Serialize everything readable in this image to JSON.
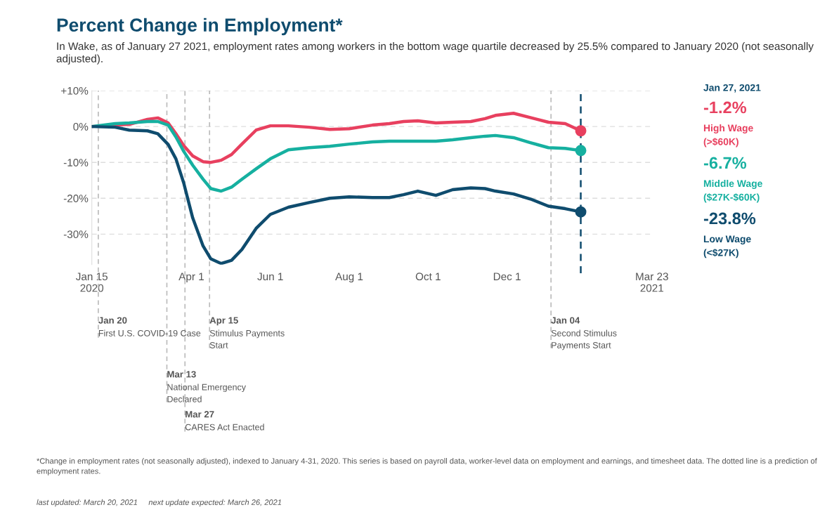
{
  "chart_data": {
    "type": "line",
    "title": "Percent Change in Employment*",
    "subtitle": "In Wake, as of January 27 2021, employment rates among workers in the bottom wage quartile decreased by 25.5% compared to January 2020 (not seasonally adjusted).",
    "x": [
      "2020-01-15",
      "2020-02-02",
      "2020-02-13",
      "2020-02-27",
      "2020-03-06",
      "2020-03-14",
      "2020-03-20",
      "2020-03-26",
      "2020-04-02",
      "2020-04-10",
      "2020-04-16",
      "2020-04-24",
      "2020-05-02",
      "2020-05-10",
      "2020-05-21",
      "2020-06-01",
      "2020-06-15",
      "2020-07-01",
      "2020-07-17",
      "2020-08-01",
      "2020-08-19",
      "2020-09-01",
      "2020-09-12",
      "2020-09-23",
      "2020-10-07",
      "2020-10-20",
      "2020-11-03",
      "2020-11-14",
      "2020-11-22",
      "2020-12-06",
      "2020-12-19",
      "2021-01-02",
      "2021-01-15",
      "2021-01-27"
    ],
    "series": [
      {
        "color": "#e8405f",
        "values": [
          0,
          0.4,
          0.6,
          2,
          2.4,
          1,
          -2,
          -5.3,
          -8.2,
          -9.8,
          -10,
          -9.4,
          -7.8,
          -4.9,
          -1,
          0.2,
          0.2,
          -0.2,
          -0.8,
          -0.6,
          0.4,
          0.8,
          1.4,
          1.6,
          1,
          1.2,
          1.4,
          2.2,
          3.1,
          3.7,
          2.5,
          1.2,
          0.8,
          -1.2
        ]
      },
      {
        "color": "#16b0a0",
        "values": [
          0,
          0.8,
          1,
          1.4,
          1.4,
          0.4,
          -2.9,
          -6.9,
          -10.8,
          -14.7,
          -17.3,
          -18,
          -16.9,
          -14.7,
          -11.8,
          -9,
          -6.5,
          -5.9,
          -5.5,
          -4.9,
          -4.3,
          -4.1,
          -4.1,
          -4.1,
          -4.1,
          -3.7,
          -3.1,
          -2.7,
          -2.5,
          -3.1,
          -4.5,
          -5.9,
          -6.1,
          -6.7
        ]
      },
      {
        "color": "#0f4c6e",
        "values": [
          0,
          -0.2,
          -1,
          -1.2,
          -2,
          -5,
          -9,
          -15.7,
          -25.5,
          -33.3,
          -36.9,
          -38.2,
          -37.3,
          -34.3,
          -28.4,
          -24.5,
          -22.5,
          -21.2,
          -20,
          -19.6,
          -19.8,
          -19.8,
          -19,
          -18,
          -19.2,
          -17.6,
          -17.1,
          -17.3,
          -18,
          -18.8,
          -20.2,
          -22.2,
          -22.9,
          -23.8
        ]
      },
      {
        "type": "scatter",
        "name": "High Wage\n(>$60K)",
        "color": "#e8405f",
        "x": [
          "2021-01-27"
        ],
        "values": [
          -1.2
        ]
      },
      {
        "type": "scatter",
        "name": "Middle Wage\n($27K-$60K)",
        "color": "#16b0a0",
        "x": [
          "2021-01-27"
        ],
        "values": [
          -6.7
        ]
      },
      {
        "type": "scatter",
        "name": "Low Wage\n(<$27K)",
        "color": "#0f4c6e",
        "x": [
          "2021-01-27"
        ],
        "values": [
          -23.8
        ]
      }
    ],
    "xlim": [
      "2020-01-15",
      "2021-03-23"
    ],
    "xticks": [
      {
        "value": "2020-01-15",
        "label": "Jan 15\n2020"
      },
      {
        "value": "2020-04-01",
        "label": "Apr 1"
      },
      {
        "value": "2020-06-01",
        "label": "Jun 1"
      },
      {
        "value": "2020-08-01",
        "label": "Aug 1"
      },
      {
        "value": "2020-10-01",
        "label": "Oct 1"
      },
      {
        "value": "2020-12-01",
        "label": "Dec 1"
      },
      {
        "value": "2021-03-23",
        "label": "Mar 23\n2021"
      }
    ],
    "ylim": [
      -38.5,
      10
    ],
    "yticks": [
      {
        "value": 10,
        "label": "+10%"
      },
      {
        "value": 0,
        "label": "0%"
      },
      {
        "value": -10,
        "label": "-10%"
      },
      {
        "value": -20,
        "label": "-20%"
      },
      {
        "value": -30,
        "label": "-30%"
      }
    ],
    "grid": "y",
    "line_style": "solid",
    "ref_lines": [
      {
        "axis": "x",
        "value": "2020-01-20",
        "label": "Jan 20\nFirst U.S. COVID-19 Case",
        "color": "#bbbbbb",
        "line_style": "dashed"
      },
      {
        "axis": "x",
        "value": "2020-03-13",
        "label": "Mar 13\nNational Emergency\nDeclared",
        "color": "#bbbbbb",
        "line_style": "dashed"
      },
      {
        "axis": "x",
        "value": "2020-03-27",
        "label": "Mar 27\nCARES Act Enacted",
        "color": "#bbbbbb",
        "line_style": "dashed"
      },
      {
        "axis": "x",
        "value": "2020-04-15",
        "label": "Apr 15\nStimulus Payments\nStart",
        "color": "#bbbbbb",
        "line_style": "dashed"
      },
      {
        "axis": "x",
        "value": "2021-01-04",
        "label": "Jan 04\nSecond Stimulus\nPayments Start",
        "color": "#bbbbbb",
        "line_style": "dashed"
      },
      {
        "axis": "x",
        "value": "2021-01-27",
        "label": "Jan 27, 2021",
        "color": "#0f4c6e",
        "line_style": "dashed"
      }
    ],
    "annotations": [
      "-1.2%",
      "-6.7%",
      "-23.8%",
      "*Change in employment rates (not seasonally adjusted), indexed to January 4-31, 2020. This series is based on payroll data, worker-level data on employment and earnings, and timesheet data. The dotted line is a prediction of employment rates.",
      "last updated: March 20, 2021     next update expected: March 26, 2021"
    ]
  }
}
